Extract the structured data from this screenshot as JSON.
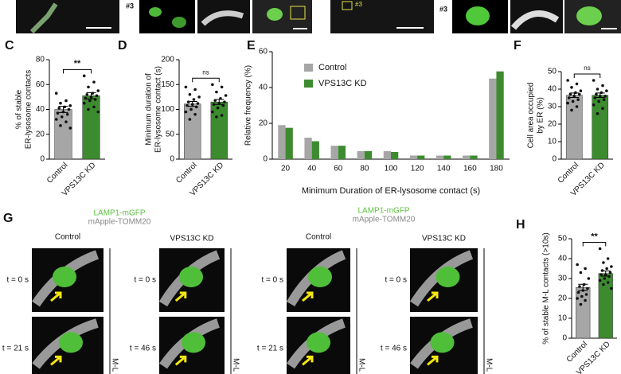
{
  "panel_letters": [
    "C",
    "D",
    "E",
    "F",
    "G",
    "H"
  ],
  "top_tags": [
    "#3",
    "#3",
    "#3"
  ],
  "panel_g": {
    "legend_left": [
      "LAMP1-mGFP",
      "mApple-TOMM20"
    ],
    "legend_right": [
      "LAMP1-mGFP",
      "mApple-TOMM20"
    ],
    "columns": [
      "Control",
      "VPS13C KD",
      "Control",
      "VPS13C KD"
    ],
    "times": [
      [
        "t = 0 s",
        "t = 21 s"
      ],
      [
        "t = 0 s",
        "t = 46 s"
      ],
      [
        "t = 0 s",
        "t = 21 s"
      ],
      [
        "t = 0 s",
        "t = 46 s"
      ]
    ],
    "side_labels": [
      "M-L",
      "M-L",
      "M-L",
      "M-L"
    ]
  },
  "chart_data": [
    {
      "type": "bar",
      "ylabel": [
        "% of stable",
        "ER-lysosome contacts"
      ],
      "categories": [
        "Control",
        "VPS13C KD"
      ],
      "values": [
        40,
        51
      ],
      "errors": [
        2.5,
        2.5
      ],
      "colors": [
        "#a6a6a6",
        "#3d8b2f"
      ],
      "points": [
        [
          53,
          47,
          45,
          43,
          42,
          41,
          40,
          38,
          37,
          36,
          34,
          32,
          30,
          27,
          25
        ],
        [
          67,
          62,
          58,
          55,
          53,
          52,
          51,
          50,
          49,
          48,
          47,
          45,
          42,
          40,
          38
        ]
      ],
      "annotation": "**",
      "ylim": [
        0,
        80
      ],
      "yticks": [
        0,
        20,
        40,
        60,
        80
      ]
    },
    {
      "type": "bar",
      "ylabel": [
        "Minimum duration of",
        "ER-lysosome contact (s)"
      ],
      "categories": [
        "Control",
        "VPS13C KD"
      ],
      "values": [
        111,
        115
      ],
      "errors": [
        5,
        5
      ],
      "colors": [
        "#a6a6a6",
        "#3d8b2f"
      ],
      "points": [
        [
          145,
          140,
          130,
          125,
          120,
          115,
          112,
          110,
          108,
          105,
          100,
          95,
          90,
          80
        ],
        [
          150,
          145,
          135,
          128,
          122,
          118,
          115,
          112,
          110,
          108,
          103,
          95,
          88,
          85
        ]
      ],
      "annotation": "ns",
      "ylim": [
        0,
        200
      ],
      "yticks": [
        0,
        50,
        100,
        150,
        200
      ]
    },
    {
      "type": "bar",
      "ylabel": [
        "Relative frequency (%)"
      ],
      "xlabel": "Minimum Duration of ER-lysosome contact (s)",
      "categories": [
        "20",
        "40",
        "60",
        "80",
        "100",
        "120",
        "140",
        "160",
        "180"
      ],
      "series": [
        {
          "name": "Control",
          "color": "#a6a6a6",
          "values": [
            19,
            12,
            7.5,
            4.5,
            4.5,
            2,
            2,
            2,
            45
          ]
        },
        {
          "name": "VPS13C KD",
          "color": "#3d8b2f",
          "values": [
            17.5,
            10,
            7.5,
            4.5,
            4,
            2,
            2,
            2,
            49
          ]
        }
      ],
      "legend": "upper left",
      "ylim": [
        0,
        60
      ],
      "yticks": [
        0,
        20,
        40,
        60
      ]
    },
    {
      "type": "bar",
      "ylabel": [
        "Cell area occupied",
        "by ER (%)"
      ],
      "categories": [
        "Control",
        "VPS13C KD"
      ],
      "values": [
        36.5,
        36.5
      ],
      "errors": [
        1.3,
        1.3
      ],
      "colors": [
        "#a6a6a6",
        "#3d8b2f"
      ],
      "points": [
        [
          45,
          43,
          41,
          39,
          38,
          37,
          37,
          36,
          35,
          34,
          33,
          32,
          30,
          28
        ],
        [
          45,
          42,
          40,
          39,
          38,
          37,
          36,
          36,
          35,
          34,
          33,
          31,
          29,
          26
        ]
      ],
      "annotation": "ns",
      "ylim": [
        0,
        50
      ],
      "yticks": [
        0,
        10,
        20,
        30,
        40,
        50
      ]
    },
    {
      "type": "bar",
      "ylabel": [
        "% of stable M-L contacts (>10s)"
      ],
      "categories": [
        "Control",
        "VPS13C KD"
      ],
      "values": [
        25.5,
        32.5
      ],
      "errors": [
        1.6,
        1.3
      ],
      "colors": [
        "#a6a6a6",
        "#3d8b2f"
      ],
      "points": [
        [
          37,
          35,
          33,
          30,
          27,
          26,
          25,
          24,
          23,
          22,
          21,
          20,
          19,
          17
        ],
        [
          45,
          40,
          38,
          36,
          35,
          34,
          33,
          32,
          32,
          31,
          30,
          29,
          28,
          27,
          25
        ]
      ],
      "annotation": "**",
      "ylim": [
        0,
        50
      ],
      "yticks": [
        0,
        10,
        20,
        30,
        40,
        50
      ]
    }
  ]
}
